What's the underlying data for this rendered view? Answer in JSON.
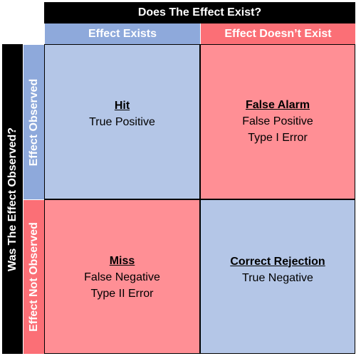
{
  "colors": {
    "blue_header": "#8ea9db",
    "red_header": "#fb6f76",
    "blue_cell": "#b4c6e7",
    "red_cell": "#ff8f95",
    "black": "#000000"
  },
  "headers": {
    "top_title": "Does The Effect Exist?",
    "side_title": "Was The Effect Observed?",
    "columns": [
      "Effect Exists",
      "Effect Doesn’t Exist"
    ],
    "rows": [
      "Effect Observed",
      "Effect Not Observed"
    ]
  },
  "cells": {
    "top_left": {
      "title": "Hit",
      "lines": [
        "True Positive"
      ]
    },
    "top_right": {
      "title": "False Alarm",
      "lines": [
        "False Positive",
        "Type I Error"
      ]
    },
    "bottom_left": {
      "title": "Miss",
      "lines": [
        "False Negative",
        "Type II Error"
      ]
    },
    "bottom_right": {
      "title": "Correct Rejection",
      "lines": [
        "True Negative"
      ]
    }
  }
}
